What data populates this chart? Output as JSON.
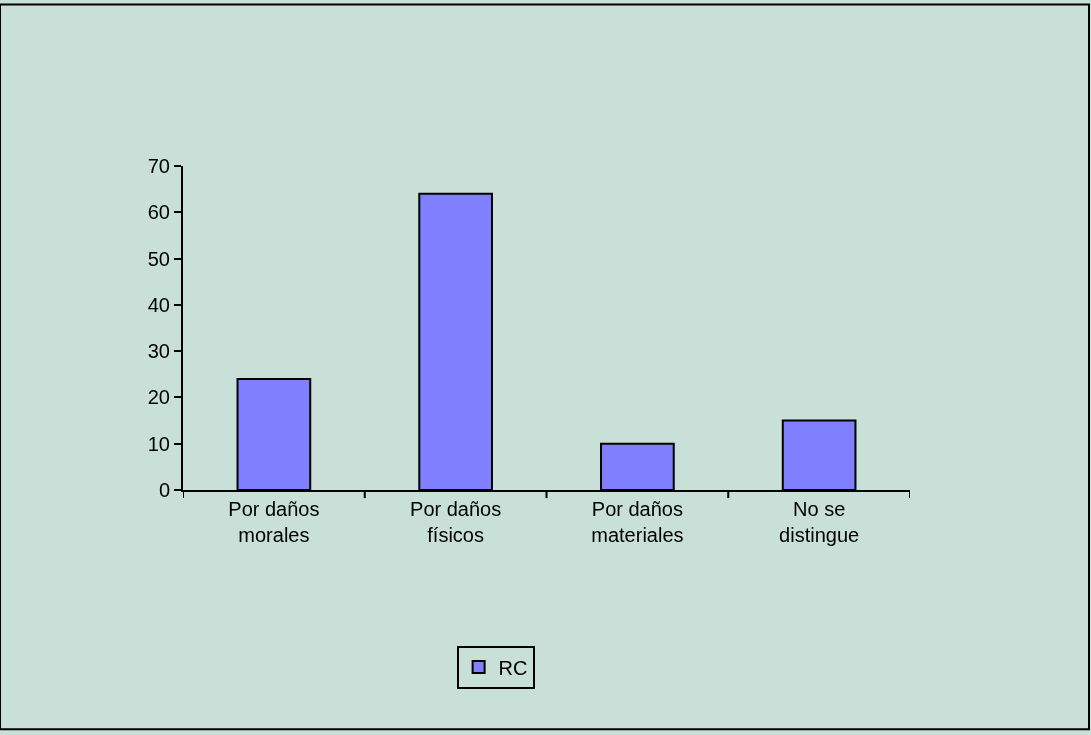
{
  "chart_data": {
    "type": "bar",
    "categories": [
      "Por daños\nmorales",
      "Por daños\nfísicos",
      "Por daños\nmateriales",
      "No se\ndistingue"
    ],
    "series": [
      {
        "name": "RC",
        "color": "#8080ff",
        "values": [
          24,
          64,
          10,
          15
        ]
      }
    ],
    "ylim": [
      0,
      70
    ],
    "yticks": [
      0,
      10,
      20,
      30,
      40,
      50,
      60,
      70
    ],
    "grid": false,
    "legend": "bottom"
  }
}
